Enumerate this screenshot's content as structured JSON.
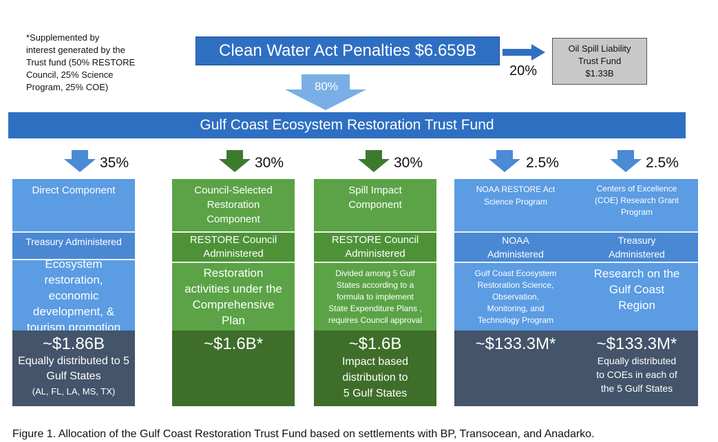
{
  "note": {
    "lines": [
      "*Supplemented by",
      "interest generated by the",
      "Trust fund (50% RESTORE",
      "Council, 25% Science",
      "Program, 25% COE)"
    ]
  },
  "cwa": {
    "label": "Clean Water Act Penalties $6.659B"
  },
  "oil_spill": {
    "lines": [
      "Oil Spill Liability",
      "Trust Fund",
      "$1.33B"
    ],
    "pct": "20%"
  },
  "main_arrow": {
    "pct": "80%"
  },
  "trust": {
    "label": "Gulf Coast Ecosystem Restoration Trust Fund"
  },
  "columns": [
    {
      "pct": "35%",
      "theme": "blue",
      "name": [
        "Direct Component"
      ],
      "admin": [
        "Treasury Administered"
      ],
      "purpose": [
        "Ecosystem restoration,",
        "economic",
        "development, &",
        "tourism promotion"
      ],
      "amount": "~$1.86B",
      "detail": [
        "Equally distributed to 5",
        "Gulf States",
        "(AL, FL, LA, MS, TX)"
      ]
    },
    {
      "pct": "30%",
      "theme": "green",
      "name": [
        "Council-Selected",
        "Restoration",
        "Component"
      ],
      "admin": [
        "RESTORE Council",
        "Administered"
      ],
      "purpose": [
        "Restoration",
        "activities under the",
        "Comprehensive",
        "Plan"
      ],
      "amount": "~$1.6B*",
      "detail": []
    },
    {
      "pct": "30%",
      "theme": "green",
      "name": [
        "Spill Impact",
        "Component"
      ],
      "admin": [
        "RESTORE Council",
        "Administered"
      ],
      "purpose": [
        "Divided among 5 Gulf",
        "States according to a",
        "formula to implement",
        "State Expenditure Plans ,",
        "requires Council approval"
      ],
      "amount": "~$1.6B",
      "detail": [
        "Impact based",
        "distribution to",
        "5 Gulf States"
      ]
    },
    {
      "pct": "2.5%",
      "theme": "blue",
      "name": [
        "NOAA RESTORE Act",
        "Science Program"
      ],
      "admin": [
        "NOAA",
        "Administered"
      ],
      "purpose": [
        "Gulf Coast Ecosystem",
        "Restoration Science,",
        "Observation,",
        "Monitoring, and",
        "Technology Program"
      ],
      "amount": "~$133.3M*",
      "detail": []
    },
    {
      "pct": "2.5%",
      "theme": "blue",
      "name": [
        "Centers of Excellence",
        "(COE) Research Grant",
        "Program"
      ],
      "admin": [
        "Treasury",
        "Administered"
      ],
      "purpose": [
        "Research on the",
        "Gulf Coast",
        "Region"
      ],
      "amount": "~$133.3M*",
      "detail": [
        "Equally distributed",
        "to COEs in each of",
        "the 5 Gulf States"
      ]
    }
  ],
  "caption": "Figure 1.  Allocation of the Gulf Coast Restoration Trust Fund based on settlements with BP, Transocean, and Anadarko."
}
